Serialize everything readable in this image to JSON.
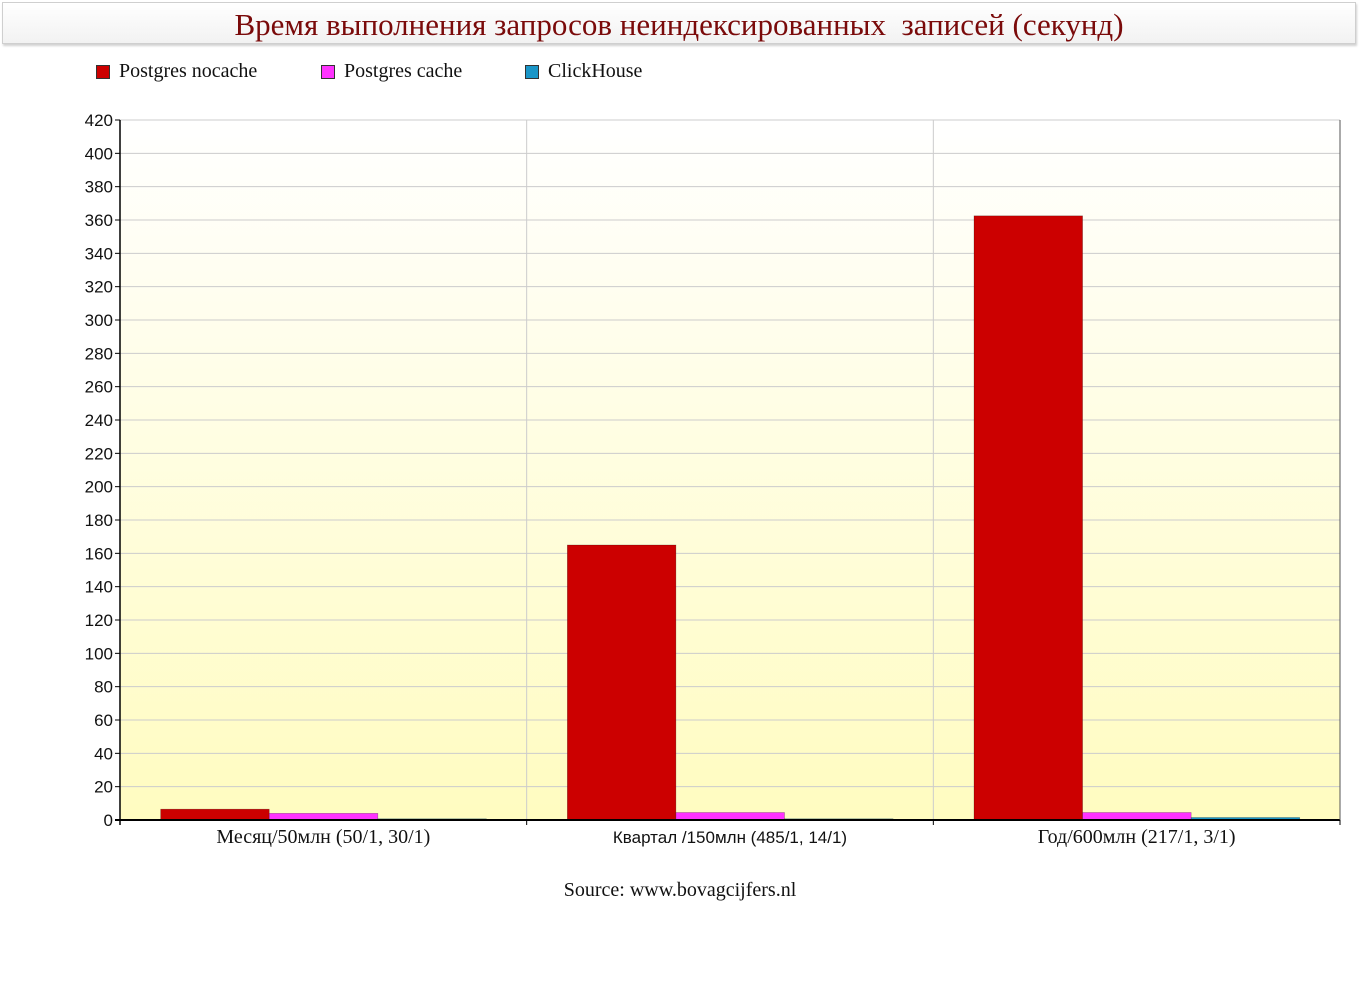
{
  "chart_data": {
    "type": "bar",
    "title": "Время выполнения запросов неиндексированных  записей (секунд)",
    "categories": [
      "Месяц/50млн (50/1, 30/1)",
      "Квартал /150млн (485/1, 14/1)",
      "Год/600млн (217/1, 3/1)"
    ],
    "series": [
      {
        "name": "Postgres nocache",
        "color": "#cc0000",
        "values": [
          6.5,
          165,
          362.5
        ]
      },
      {
        "name": "Postgres cache",
        "color": "#ff33ff",
        "values": [
          4,
          4.5,
          4.5
        ]
      },
      {
        "name": "ClickHouse",
        "color": "#1a96c8",
        "values": [
          0.3,
          0.3,
          1.5
        ]
      }
    ],
    "ylim": [
      0,
      420
    ],
    "yticks": [
      "0",
      "20",
      "40",
      "60",
      "80",
      "100",
      "120",
      "140",
      "160",
      "180",
      "200",
      "220",
      "240",
      "260",
      "280",
      "300",
      "320",
      "340",
      "360",
      "380",
      "400",
      "420"
    ],
    "grid": true,
    "legend_position": "top-left",
    "source": "Source: www.bovagcijfers.nl",
    "background_gradient": [
      "#ffffff",
      "#fffcc0"
    ]
  }
}
